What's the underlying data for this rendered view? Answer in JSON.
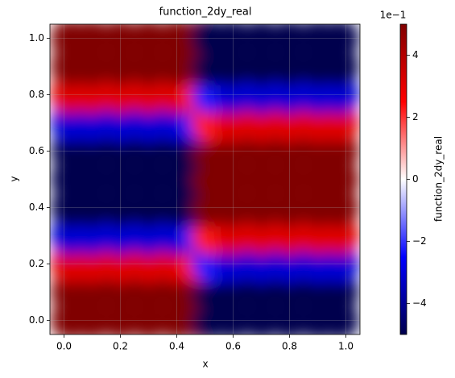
{
  "chart_data": {
    "type": "heatmap",
    "title": "function_2dy_real",
    "x_label": "x",
    "y_label": "y",
    "colorbar_label": "function_2dy_real",
    "colorbar_offset": "1e−1",
    "x": [
      0.02,
      0.1,
      0.2,
      0.3,
      0.4,
      0.48,
      0.52,
      0.6,
      0.7,
      0.8,
      0.9,
      0.98
    ],
    "y": [
      0.0,
      0.1,
      0.2,
      0.3,
      0.4,
      0.5,
      0.6,
      0.7,
      0.8,
      0.9,
      1.0
    ],
    "values": [
      [
        10,
        10,
        10,
        10,
        10,
        7,
        -7,
        -10,
        -10,
        -10,
        -10,
        -10
      ],
      [
        8.1,
        8.1,
        8.1,
        8.1,
        8.1,
        5.7,
        -5.7,
        -8.1,
        -8.1,
        -8.1,
        -8.1,
        -8.1
      ],
      [
        3.1,
        3.1,
        3.1,
        3.1,
        3.1,
        2.2,
        -2.2,
        -3.1,
        -3.1,
        -3.1,
        -3.1,
        -3.1
      ],
      [
        -3.1,
        -3.1,
        -3.1,
        -3.1,
        -3.1,
        -2.2,
        2.2,
        3.1,
        3.1,
        3.1,
        3.1,
        3.1
      ],
      [
        -8.1,
        -8.1,
        -8.1,
        -8.1,
        -8.1,
        -5.7,
        5.7,
        8.1,
        8.1,
        8.1,
        8.1,
        8.1
      ],
      [
        -10,
        -10,
        -10,
        -10,
        -10,
        -7,
        7,
        10,
        10,
        10,
        10,
        10
      ],
      [
        -8.1,
        -8.1,
        -8.1,
        -8.1,
        -8.1,
        -5.7,
        5.7,
        8.1,
        8.1,
        8.1,
        8.1,
        8.1
      ],
      [
        -3.1,
        -3.1,
        -3.1,
        -3.1,
        -3.1,
        -2.2,
        2.2,
        3.1,
        3.1,
        3.1,
        3.1,
        3.1
      ],
      [
        3.1,
        3.1,
        3.1,
        3.1,
        3.1,
        2.2,
        -2.2,
        -3.1,
        -3.1,
        -3.1,
        -3.1,
        -3.1
      ],
      [
        8.1,
        8.1,
        8.1,
        8.1,
        8.1,
        5.7,
        -5.7,
        -8.1,
        -8.1,
        -8.1,
        -8.1,
        -8.1
      ],
      [
        10,
        10,
        10,
        10,
        10,
        7,
        -7,
        -10,
        -10,
        -10,
        -10,
        -10
      ]
    ],
    "xlim": [
      -0.05,
      1.05
    ],
    "ylim": [
      -0.05,
      1.05
    ],
    "xticks": [
      {
        "value": 0,
        "label": "0.0"
      },
      0.2,
      0.4,
      0.6,
      0.8,
      {
        "value": 1,
        "label": "1.0"
      }
    ],
    "yticks": [
      {
        "value": 0,
        "label": "0.0"
      },
      0.2,
      0.4,
      0.6,
      0.8,
      {
        "value": 1,
        "label": "1.0"
      }
    ],
    "clim": [
      -5,
      5
    ],
    "cticks": [
      {
        "value": -4,
        "label": "−4"
      },
      {
        "value": -2,
        "label": "−2"
      },
      0,
      2,
      4
    ],
    "colormap": "seismic",
    "grid": true
  }
}
